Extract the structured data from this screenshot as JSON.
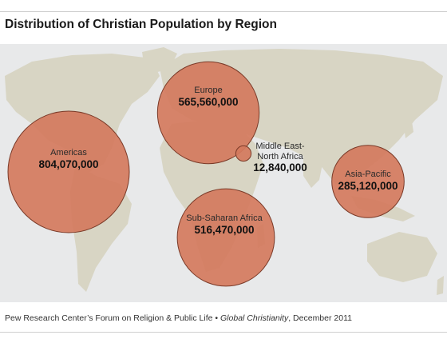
{
  "title": "Distribution of Christian Population by Region",
  "colors": {
    "bubble_fill": "#d4795d",
    "bubble_stroke": "#7a3a28",
    "land": "#d8d5c4",
    "ocean": "#e8e9ea"
  },
  "regions": [
    {
      "name": "Americas",
      "value": "804,070,000",
      "population": 804070000
    },
    {
      "name": "Europe",
      "value": "565,560,000",
      "population": 565560000
    },
    {
      "name": "Sub-Saharan Africa",
      "value": "516,470,000",
      "population": 516470000
    },
    {
      "name": "Asia-Pacific",
      "value": "285,120,000",
      "population": 285120000
    },
    {
      "name_line1": "Middle East-",
      "name_line2": "North Africa",
      "value": "12,840,000",
      "population": 12840000
    }
  ],
  "footer": {
    "source": "Pew Research Center’s Forum on Religion & Public Life •",
    "publication": "Global Christianity",
    "date": ", December 2011"
  }
}
